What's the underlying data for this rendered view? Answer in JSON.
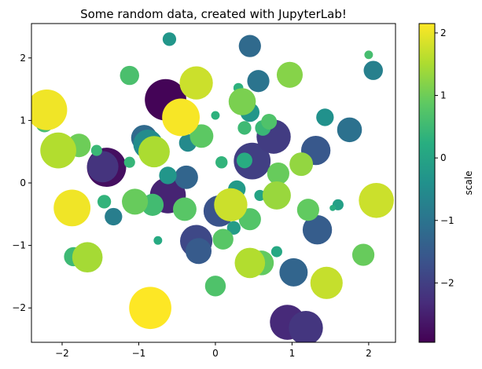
{
  "chart_data": {
    "type": "scatter",
    "title": "Some random data, created with JupyterLab!",
    "xlabel": "",
    "ylabel": "",
    "xlim": [
      -2.4,
      2.35
    ],
    "ylim": [
      -2.55,
      2.55
    ],
    "xticks": [
      -2,
      -1,
      0,
      1,
      2
    ],
    "yticks": [
      -2,
      -1,
      0,
      1,
      2
    ],
    "grid": false,
    "colorbar": {
      "label": "scale",
      "colormap": "viridis",
      "range": [
        -2.95,
        2.15
      ],
      "ticks": [
        -2,
        -1,
        0,
        1,
        2
      ]
    },
    "tick_labels_x": [
      "−2",
      "−1",
      "0",
      "1",
      "2"
    ],
    "tick_labels_y": [
      "−2",
      "−1",
      "0",
      "1",
      "2"
    ],
    "tick_labels_cbar": [
      "−2",
      "−1",
      "0",
      "1",
      "2"
    ],
    "points": [
      {
        "x": -0.65,
        "y": 1.33,
        "c": -2.9,
        "s": 1400
      },
      {
        "x": -1.42,
        "y": 0.25,
        "c": -2.75,
        "s": 1250
      },
      {
        "x": -0.62,
        "y": -0.2,
        "c": -2.45,
        "s": 1050
      },
      {
        "x": 0.94,
        "y": -2.23,
        "c": -2.35,
        "s": 1000
      },
      {
        "x": 1.18,
        "y": -2.32,
        "c": -2.15,
        "s": 950
      },
      {
        "x": -1.47,
        "y": 0.26,
        "c": -2.2,
        "s": 800
      },
      {
        "x": 0.48,
        "y": 0.35,
        "c": -2.0,
        "s": 1100
      },
      {
        "x": 0.76,
        "y": 0.74,
        "c": -2.05,
        "s": 950
      },
      {
        "x": -0.25,
        "y": -0.93,
        "c": -1.85,
        "s": 850
      },
      {
        "x": 0.05,
        "y": -0.45,
        "c": -1.65,
        "s": 800
      },
      {
        "x": 1.31,
        "y": 0.52,
        "c": -1.55,
        "s": 700
      },
      {
        "x": 1.33,
        "y": -0.75,
        "c": -1.45,
        "s": 700
      },
      {
        "x": 1.02,
        "y": -1.43,
        "c": -1.3,
        "s": 650
      },
      {
        "x": -0.22,
        "y": -1.09,
        "c": -1.5,
        "s": 550
      },
      {
        "x": 0.45,
        "y": 2.19,
        "c": -1.2,
        "s": 400
      },
      {
        "x": 0.56,
        "y": 1.63,
        "c": -1.0,
        "s": 400
      },
      {
        "x": 1.75,
        "y": 0.85,
        "c": -1.05,
        "s": 500
      },
      {
        "x": -0.93,
        "y": 0.72,
        "c": -1.2,
        "s": 550
      },
      {
        "x": -0.38,
        "y": 0.09,
        "c": -1.3,
        "s": 450
      },
      {
        "x": -0.25,
        "y": 1.52,
        "c": -0.95,
        "s": 350
      },
      {
        "x": 2.06,
        "y": 1.8,
        "c": -0.75,
        "s": 300
      },
      {
        "x": -1.33,
        "y": -0.54,
        "c": -0.8,
        "s": 250
      },
      {
        "x": -0.36,
        "y": 0.64,
        "c": -0.55,
        "s": 250
      },
      {
        "x": 1.43,
        "y": 1.05,
        "c": -0.4,
        "s": 250
      },
      {
        "x": 0.45,
        "y": 1.13,
        "c": -0.3,
        "s": 300
      },
      {
        "x": -0.62,
        "y": 0.12,
        "c": -0.3,
        "s": 250
      },
      {
        "x": 0.28,
        "y": -0.1,
        "c": -0.2,
        "s": 250
      },
      {
        "x": -0.88,
        "y": 0.62,
        "c": -0.5,
        "s": 700
      },
      {
        "x": -0.6,
        "y": 2.3,
        "c": -0.3,
        "s": 150
      },
      {
        "x": 0.24,
        "y": -0.72,
        "c": -0.15,
        "s": 150
      },
      {
        "x": 1.6,
        "y": -0.35,
        "c": -0.1,
        "s": 100
      },
      {
        "x": 0.58,
        "y": -0.2,
        "c": 0.0,
        "s": 100
      },
      {
        "x": 0.8,
        "y": -1.1,
        "c": 0.1,
        "s": 100
      },
      {
        "x": -0.75,
        "y": -0.92,
        "c": 0.15,
        "s": 60
      },
      {
        "x": 1.53,
        "y": -0.4,
        "c": 0.2,
        "s": 30
      },
      {
        "x": 0.3,
        "y": 1.52,
        "c": 0.3,
        "s": 80
      },
      {
        "x": 0.0,
        "y": 1.08,
        "c": 0.3,
        "s": 60
      },
      {
        "x": 0.38,
        "y": 0.36,
        "c": 0.2,
        "s": 200
      },
      {
        "x": -1.45,
        "y": -0.3,
        "c": 0.35,
        "s": 150
      },
      {
        "x": -1.12,
        "y": 0.33,
        "c": 0.4,
        "s": 100
      },
      {
        "x": -1.55,
        "y": 0.52,
        "c": 0.45,
        "s": 100
      },
      {
        "x": 0.08,
        "y": 0.33,
        "c": 0.35,
        "s": 120
      },
      {
        "x": 0.38,
        "y": 0.88,
        "c": 0.5,
        "s": 150
      },
      {
        "x": 0.62,
        "y": 0.88,
        "c": 0.45,
        "s": 200
      },
      {
        "x": 0.7,
        "y": 0.98,
        "c": 0.7,
        "s": 200
      },
      {
        "x": 2.0,
        "y": 2.05,
        "c": 0.6,
        "s": 60
      },
      {
        "x": -2.23,
        "y": 0.95,
        "c": 0.6,
        "s": 250
      },
      {
        "x": -1.85,
        "y": -1.18,
        "c": 0.5,
        "s": 300
      },
      {
        "x": -0.82,
        "y": -0.35,
        "c": 0.55,
        "s": 400
      },
      {
        "x": -1.12,
        "y": 1.72,
        "c": 0.65,
        "s": 300
      },
      {
        "x": -0.4,
        "y": -0.42,
        "c": 0.8,
        "s": 450
      },
      {
        "x": -0.18,
        "y": 0.75,
        "c": 0.85,
        "s": 450
      },
      {
        "x": 0.45,
        "y": -0.58,
        "c": 0.75,
        "s": 400
      },
      {
        "x": 0.1,
        "y": -0.9,
        "c": 0.8,
        "s": 350
      },
      {
        "x": 0.0,
        "y": -1.65,
        "c": 0.7,
        "s": 350
      },
      {
        "x": -1.05,
        "y": -0.3,
        "c": 0.95,
        "s": 550
      },
      {
        "x": 0.6,
        "y": -1.28,
        "c": 0.9,
        "s": 500
      },
      {
        "x": 1.21,
        "y": -0.43,
        "c": 0.9,
        "s": 400
      },
      {
        "x": 1.93,
        "y": -1.15,
        "c": 0.95,
        "s": 400
      },
      {
        "x": 0.82,
        "y": 0.15,
        "c": 0.95,
        "s": 400
      },
      {
        "x": -1.78,
        "y": 0.6,
        "c": 1.0,
        "s": 450
      },
      {
        "x": 0.35,
        "y": 1.3,
        "c": 1.1,
        "s": 600
      },
      {
        "x": 0.97,
        "y": 1.73,
        "c": 1.2,
        "s": 550
      },
      {
        "x": 1.12,
        "y": 0.3,
        "c": 1.3,
        "s": 450
      },
      {
        "x": 0.8,
        "y": -0.2,
        "c": 1.35,
        "s": 650
      },
      {
        "x": -0.8,
        "y": 0.5,
        "c": 1.5,
        "s": 800
      },
      {
        "x": -1.67,
        "y": -1.19,
        "c": 1.45,
        "s": 750
      },
      {
        "x": 0.45,
        "y": -1.28,
        "c": 1.55,
        "s": 750
      },
      {
        "x": -2.05,
        "y": 0.52,
        "c": 1.55,
        "s": 1050
      },
      {
        "x": 0.2,
        "y": -0.35,
        "c": 1.75,
        "s": 900
      },
      {
        "x": -0.25,
        "y": 1.6,
        "c": 1.75,
        "s": 900
      },
      {
        "x": 1.45,
        "y": -1.6,
        "c": 1.7,
        "s": 850
      },
      {
        "x": 2.1,
        "y": -0.28,
        "c": 1.75,
        "s": 1000
      },
      {
        "x": -1.87,
        "y": -0.4,
        "c": 2.05,
        "s": 1100
      },
      {
        "x": -2.2,
        "y": 1.17,
        "c": 2.05,
        "s": 1350
      },
      {
        "x": -0.45,
        "y": 1.05,
        "c": 2.1,
        "s": 1150
      },
      {
        "x": -0.85,
        "y": -2.0,
        "c": 2.15,
        "s": 1450
      }
    ]
  }
}
